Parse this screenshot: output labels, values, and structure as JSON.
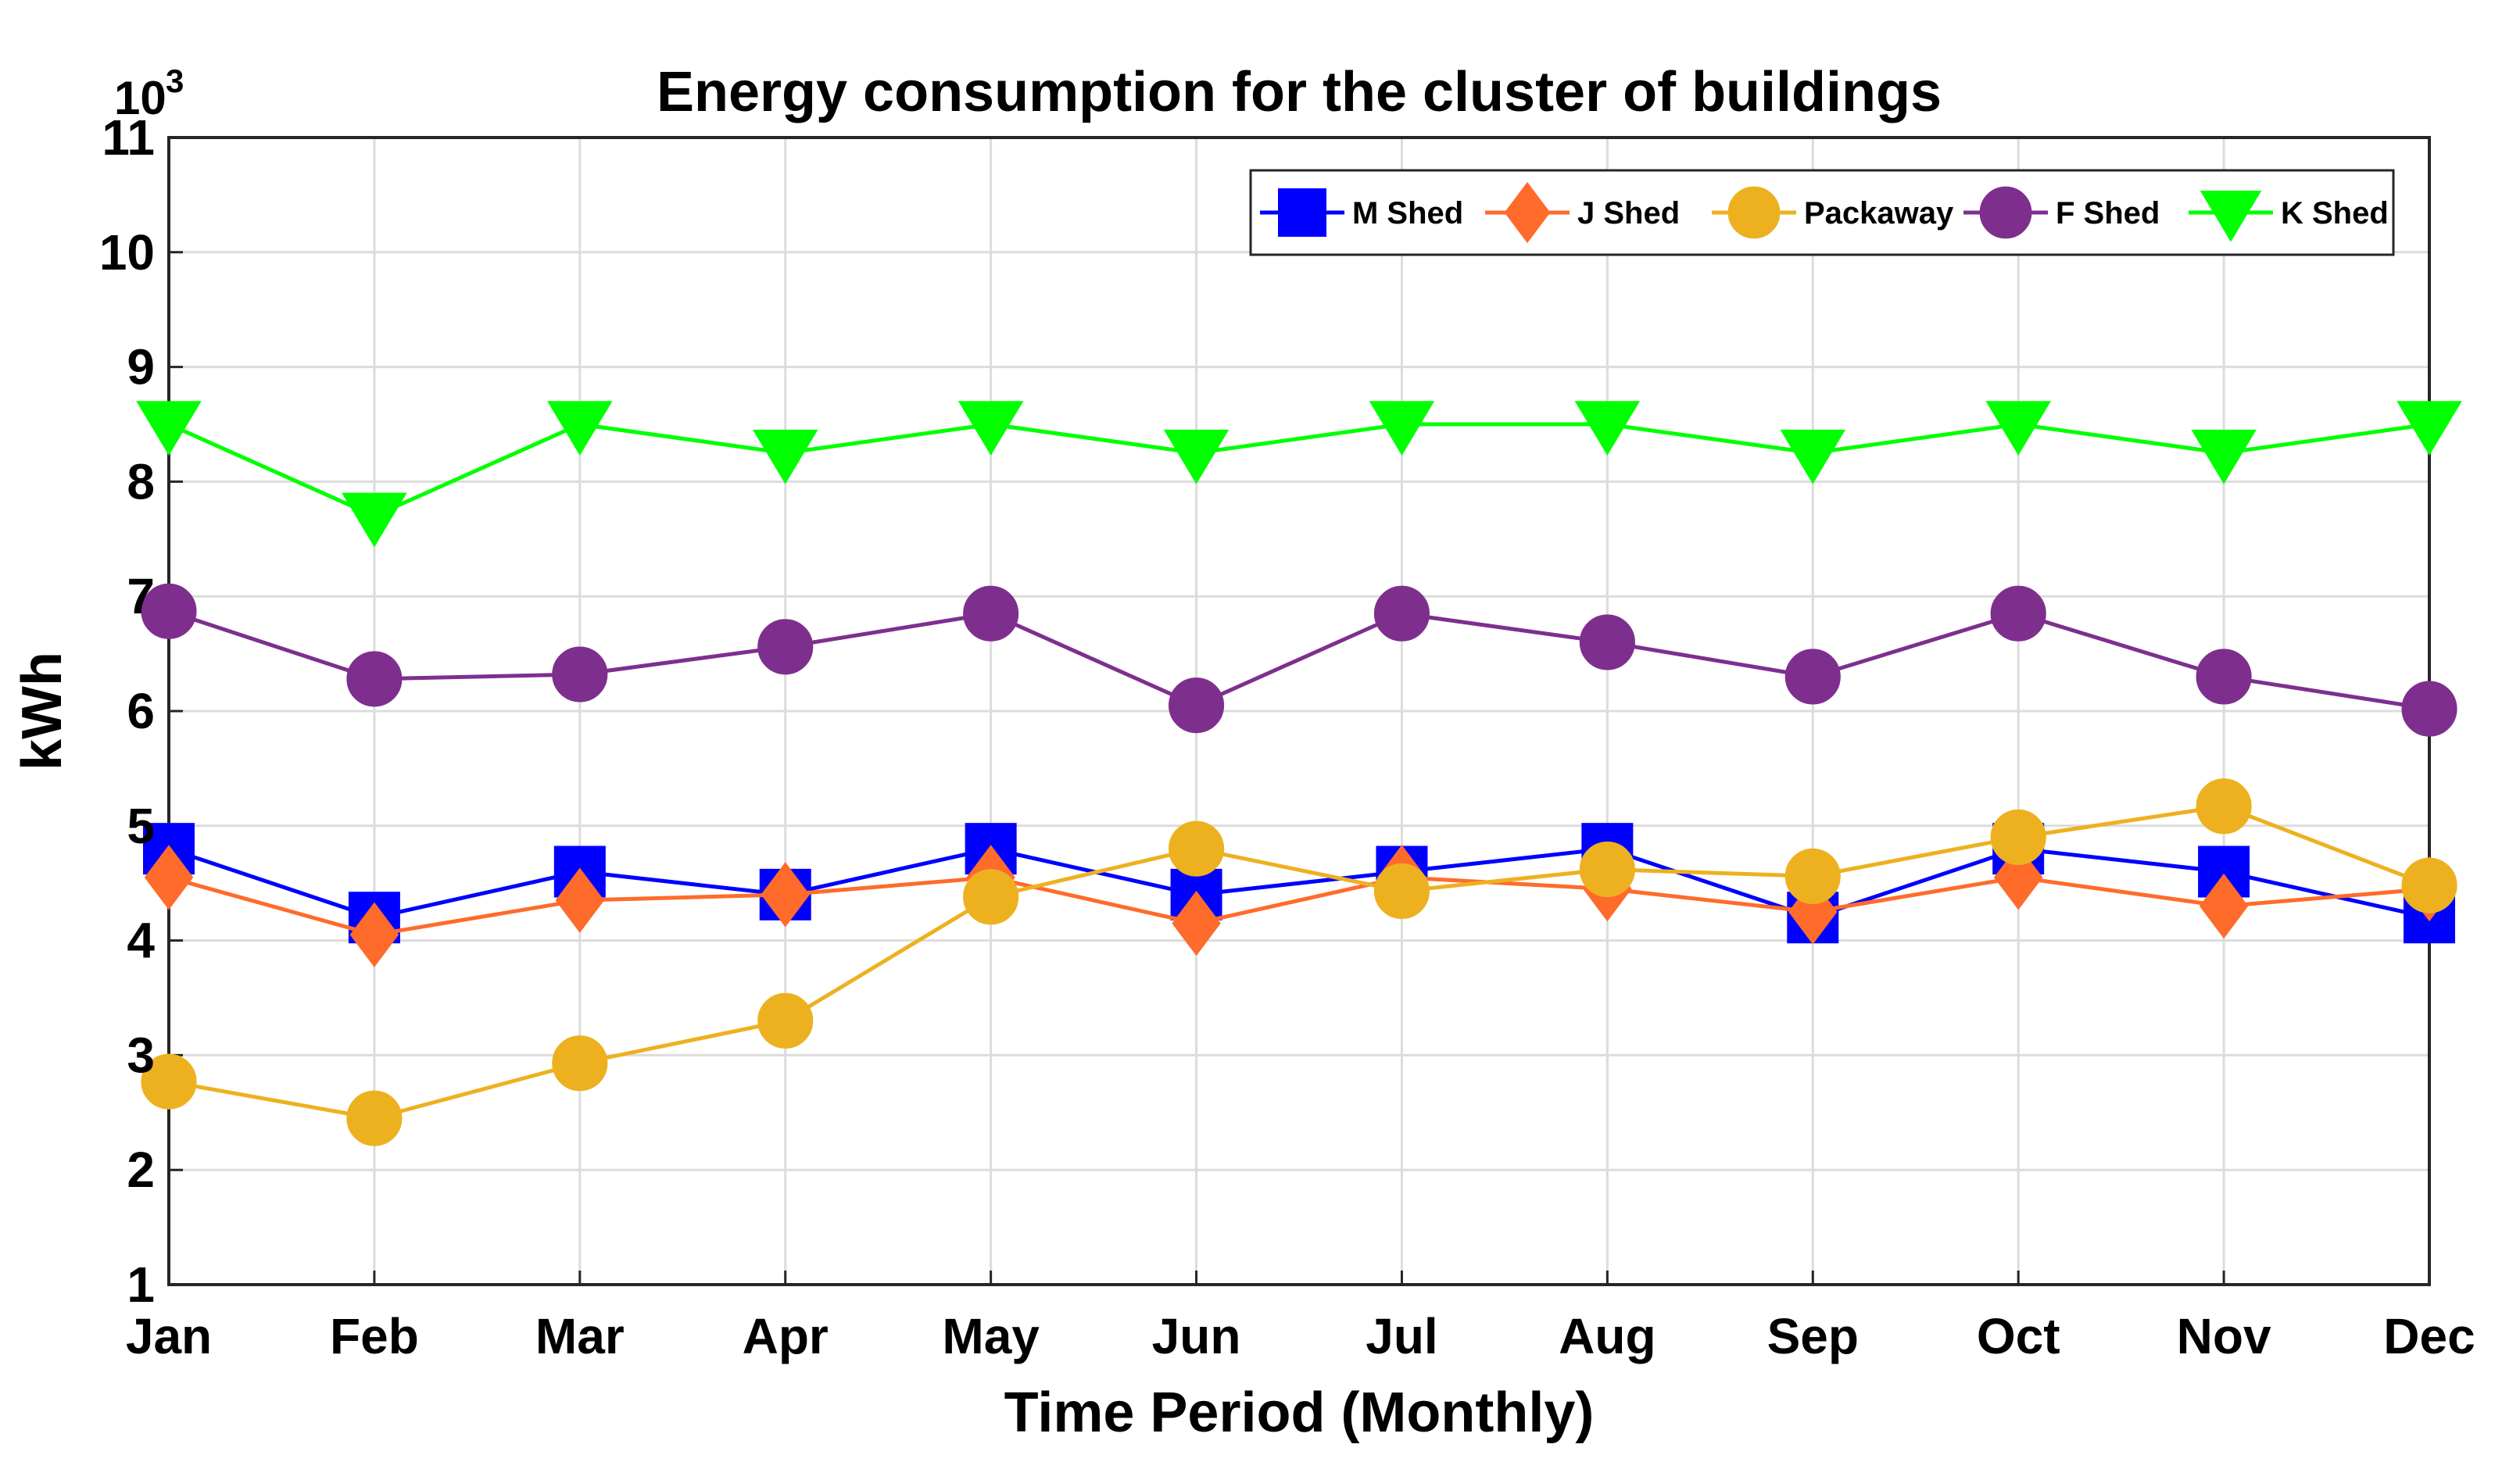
{
  "chart_data": {
    "type": "line",
    "title": "Energy consumption for the cluster of buildings",
    "xlabel": "Time Period (Monthly)",
    "ylabel": "kWh",
    "y_multiplier": {
      "base": "10",
      "exponent": "3"
    },
    "categories": [
      "Jan",
      "Feb",
      "Mar",
      "Apr",
      "May",
      "Jun",
      "Jul",
      "Aug",
      "Sep",
      "Oct",
      "Nov",
      "Dec"
    ],
    "ylim": [
      1,
      11
    ],
    "yticks": [
      "1",
      "2",
      "3",
      "4",
      "5",
      "6",
      "7",
      "8",
      "9",
      "10",
      "11"
    ],
    "grid": true,
    "legend_position": "top-right",
    "series": [
      {
        "name": "M Shed",
        "color": "#0000ff",
        "marker": "square",
        "values": [
          4.8,
          4.2,
          4.6,
          4.4,
          4.8,
          4.4,
          4.6,
          4.8,
          4.2,
          4.8,
          4.6,
          4.2
        ]
      },
      {
        "name": "J Shed",
        "color": "#ff6b2b",
        "marker": "diamond",
        "values": [
          4.55,
          4.05,
          4.35,
          4.4,
          4.55,
          4.15,
          4.55,
          4.45,
          4.25,
          4.55,
          4.3,
          4.45
        ]
      },
      {
        "name": "Packaway",
        "color": "#edb120",
        "marker": "circle",
        "values": [
          2.77,
          2.45,
          2.93,
          3.3,
          4.38,
          4.8,
          4.43,
          4.62,
          4.56,
          4.9,
          5.17,
          4.48
        ]
      },
      {
        "name": "F Shed",
        "color": "#7e2f8e",
        "marker": "circle",
        "values": [
          6.87,
          6.28,
          6.32,
          6.56,
          6.85,
          6.05,
          6.85,
          6.6,
          6.3,
          6.85,
          6.3,
          6.02
        ]
      },
      {
        "name": "K Shed",
        "color": "#00ff00",
        "marker": "triangle-down",
        "values": [
          8.5,
          7.7,
          8.5,
          8.25,
          8.5,
          8.25,
          8.5,
          8.5,
          8.25,
          8.5,
          8.25,
          8.5
        ]
      }
    ]
  }
}
